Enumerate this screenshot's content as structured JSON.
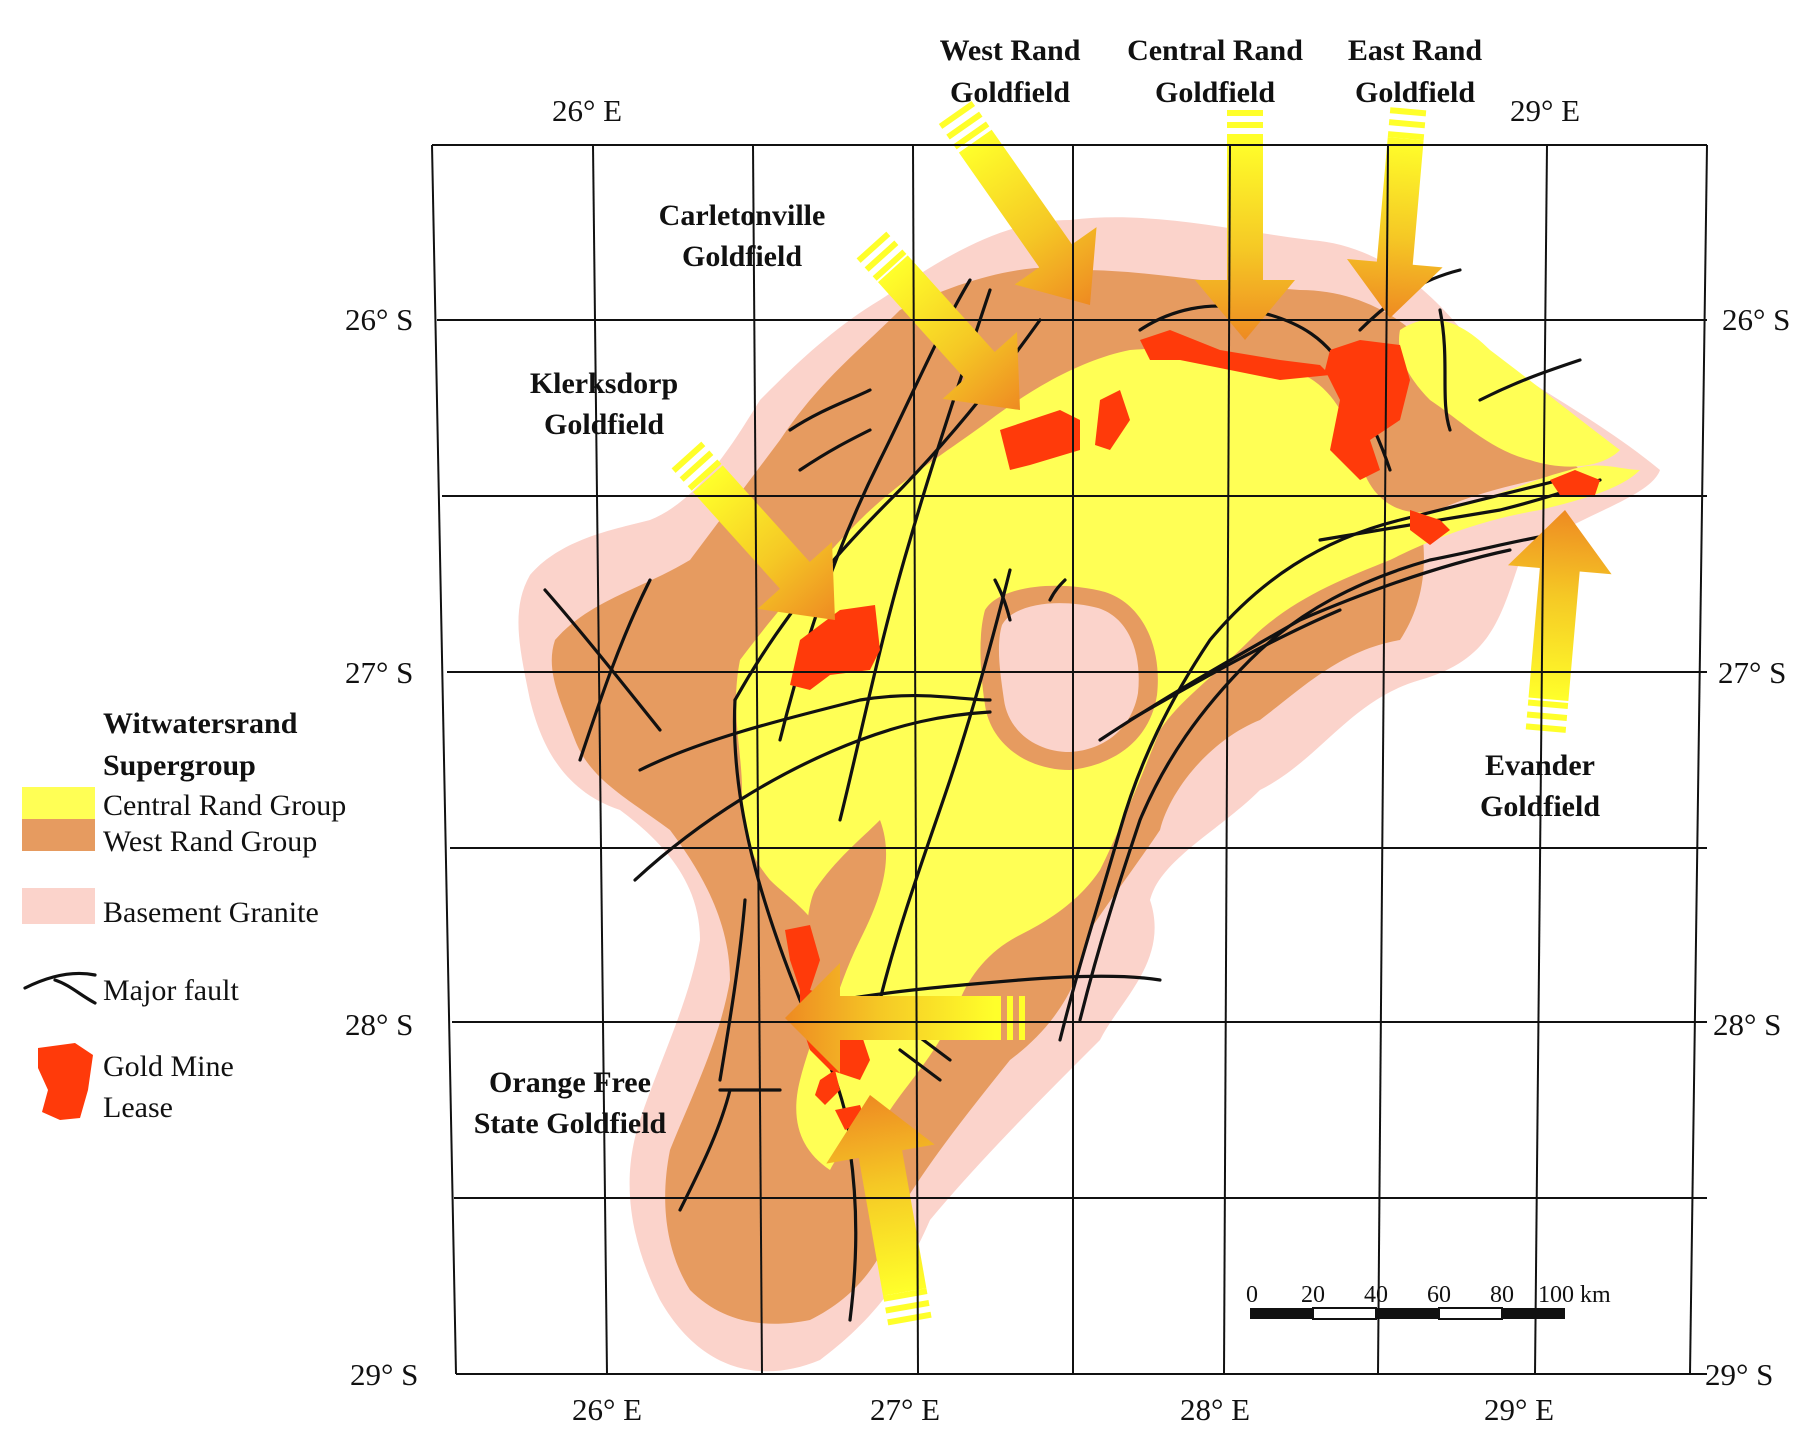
{
  "map": {
    "lon_labels": [
      "26° E",
      "29° E",
      "26° E",
      "27° E",
      "28° E",
      "29° E"
    ],
    "lat_labels": [
      "26° S",
      "27° S",
      "28° S",
      "29° S"
    ],
    "goldfields": [
      {
        "line1": "West Rand",
        "line2": "Goldfield"
      },
      {
        "line1": "Central Rand",
        "line2": "Goldfield"
      },
      {
        "line1": "East Rand",
        "line2": "Goldfield"
      },
      {
        "line1": "Carletonville",
        "line2": "Goldfield"
      },
      {
        "line1": "Klerksdorp",
        "line2": "Goldfield"
      },
      {
        "line1": "Evander",
        "line2": "Goldfield"
      },
      {
        "line1": "Orange Free",
        "line2": "State Goldfield"
      }
    ],
    "colors": {
      "central_rand": "#ffff55",
      "west_rand": "#e69b60",
      "basement_granite": "#fbd3cb",
      "gold_mine": "#ff3a0a",
      "fault": "#111111"
    }
  },
  "legend": {
    "title_line1": "Witwatersrand",
    "title_line2": "Supergroup",
    "central_rand": "Central Rand Group",
    "west_rand": "West Rand Group",
    "basement": "Basement Granite",
    "fault": "Major fault",
    "gold_line1": "Gold Mine",
    "gold_line2": "Lease"
  },
  "scale_bar": {
    "ticks": [
      "0",
      "20",
      "40",
      "60",
      "80",
      "100 km"
    ]
  }
}
